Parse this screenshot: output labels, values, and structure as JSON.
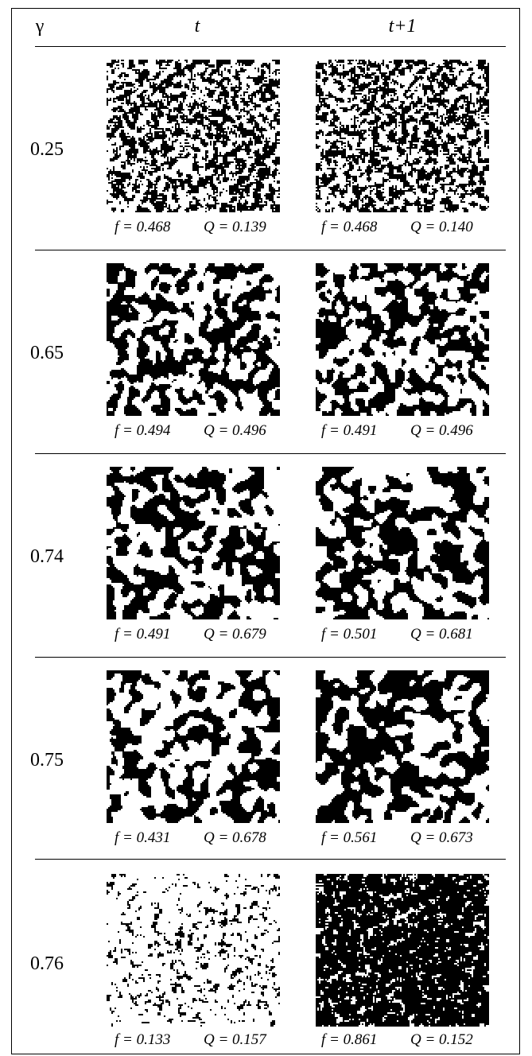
{
  "header": {
    "gamma_label": "γ",
    "col_t_label": "t",
    "col_t1_label": "t+1"
  },
  "rows": [
    {
      "gamma": "0.25",
      "t": {
        "f_label": "f = 0.468",
        "q_label": "Q = 0.139",
        "f": 0.468,
        "q": 0.139
      },
      "t1": {
        "f_label": "f = 0.468",
        "q_label": "Q = 0.140",
        "f": 0.468,
        "q": 0.14
      }
    },
    {
      "gamma": "0.65",
      "t": {
        "f_label": "f = 0.494",
        "q_label": "Q = 0.496",
        "f": 0.494,
        "q": 0.496
      },
      "t1": {
        "f_label": "f = 0.491",
        "q_label": "Q = 0.496",
        "f": 0.491,
        "q": 0.496
      }
    },
    {
      "gamma": "0.74",
      "t": {
        "f_label": "f = 0.491",
        "q_label": "Q = 0.679",
        "f": 0.491,
        "q": 0.679
      },
      "t1": {
        "f_label": "f = 0.501",
        "q_label": "Q = 0.681",
        "f": 0.501,
        "q": 0.681
      }
    },
    {
      "gamma": "0.75",
      "t": {
        "f_label": "f = 0.431",
        "q_label": "Q = 0.678",
        "f": 0.431,
        "q": 0.678
      },
      "t1": {
        "f_label": "f = 0.561",
        "q_label": "Q = 0.673",
        "f": 0.561,
        "q": 0.673
      }
    },
    {
      "gamma": "0.76",
      "t": {
        "f_label": "f = 0.133",
        "q_label": "Q = 0.157",
        "f": 0.133,
        "q": 0.157
      },
      "t1": {
        "f_label": "f = 0.861",
        "q_label": "Q = 0.152",
        "f": 0.861,
        "q": 0.152
      }
    }
  ],
  "colors": {
    "ink": "#000000",
    "paper": "#ffffff"
  }
}
